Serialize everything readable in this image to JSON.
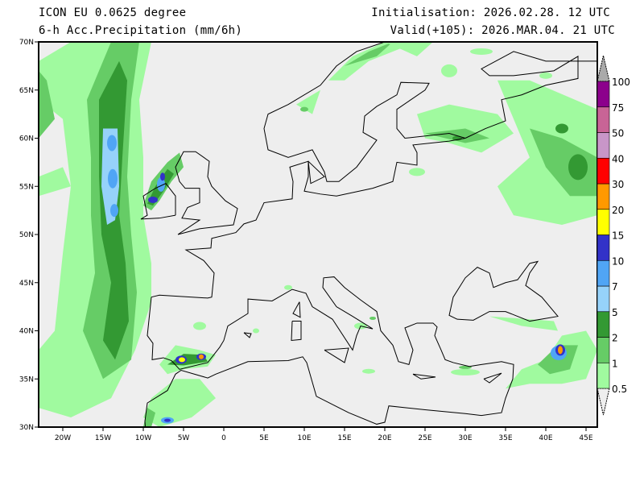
{
  "header": {
    "model": "ICON EU 0.0625 degree",
    "field": "6-h Acc.Precipitation (mm/6h)",
    "initialisation": "Initialisation: 2026.02.28. 12 UTC",
    "valid": "Valid(+105): 2026.MAR.04. 21 UTC"
  },
  "map": {
    "lon_range": [
      -23,
      46.4
    ],
    "lat_range": [
      30,
      70
    ],
    "background_color": "#eeeeee",
    "lon_ticks": [
      {
        "value": -20,
        "label": "20W"
      },
      {
        "value": -15,
        "label": "15W"
      },
      {
        "value": -10,
        "label": "10W"
      },
      {
        "value": -5,
        "label": "5W"
      },
      {
        "value": 0,
        "label": "0"
      },
      {
        "value": 5,
        "label": "5E"
      },
      {
        "value": 10,
        "label": "10E"
      },
      {
        "value": 15,
        "label": "15E"
      },
      {
        "value": 20,
        "label": "20E"
      },
      {
        "value": 25,
        "label": "25E"
      },
      {
        "value": 30,
        "label": "30E"
      },
      {
        "value": 35,
        "label": "35E"
      },
      {
        "value": 40,
        "label": "40E"
      },
      {
        "value": 45,
        "label": "45E"
      }
    ],
    "lat_ticks": [
      {
        "value": 30,
        "label": "30N"
      },
      {
        "value": 35,
        "label": "35N"
      },
      {
        "value": 40,
        "label": "40N"
      },
      {
        "value": 45,
        "label": "45N"
      },
      {
        "value": 50,
        "label": "50N"
      },
      {
        "value": 55,
        "label": "55N"
      },
      {
        "value": 60,
        "label": "60N"
      },
      {
        "value": 65,
        "label": "65N"
      },
      {
        "value": 70,
        "label": "70N"
      }
    ]
  },
  "legend": {
    "levels": [
      {
        "label": "0.5",
        "color": "#a0fa9f"
      },
      {
        "label": "1",
        "color": "#66cc66"
      },
      {
        "label": "2",
        "color": "#339933"
      },
      {
        "label": "5",
        "color": "#96d2fa"
      },
      {
        "label": "7",
        "color": "#50a5f5"
      },
      {
        "label": "10",
        "color": "#3232c8"
      },
      {
        "label": "15",
        "color": "#ffff00"
      },
      {
        "label": "20",
        "color": "#ff9900"
      },
      {
        "label": "30",
        "color": "#ff0000"
      },
      {
        "label": "40",
        "color": "#c896c8"
      },
      {
        "label": "50",
        "color": "#c86496"
      },
      {
        "label": "75",
        "color": "#8c008c"
      },
      {
        "label": "100",
        "color": null
      }
    ],
    "over_color": "#aaaaaa",
    "under_color": "#eeeeee"
  }
}
